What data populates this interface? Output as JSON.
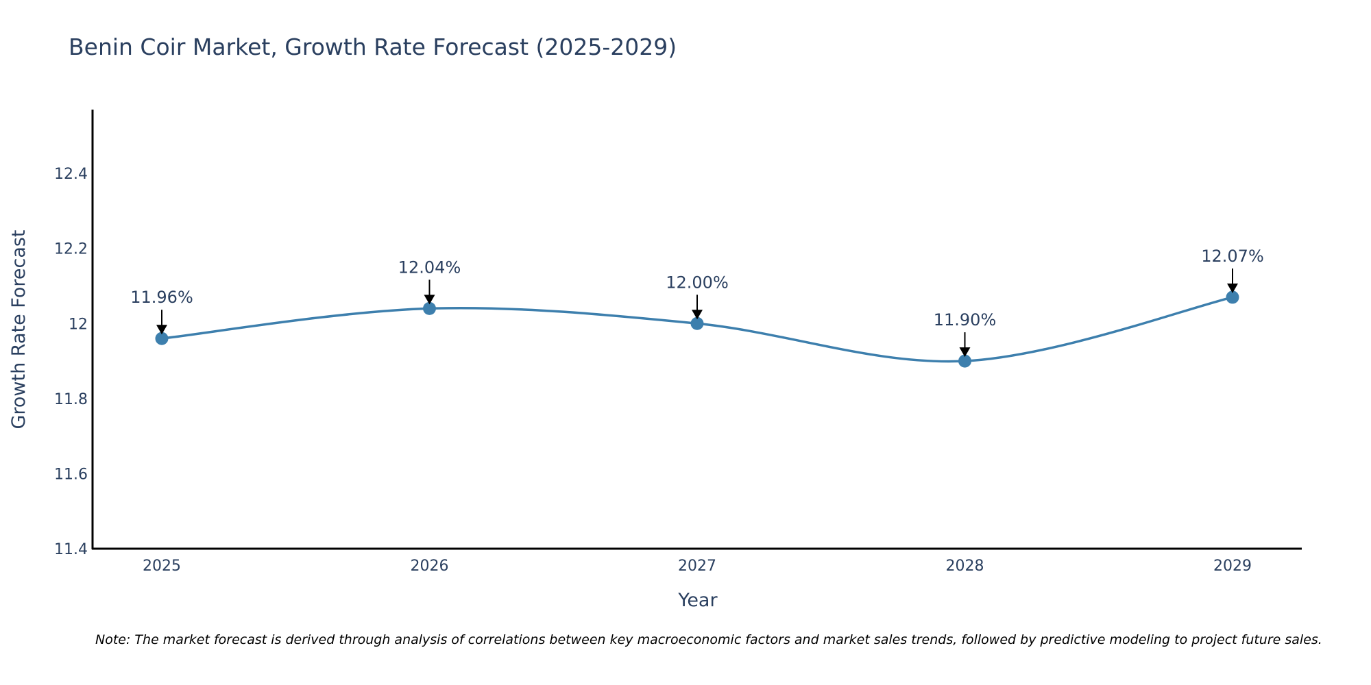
{
  "chart_data": {
    "type": "line",
    "title": "Benin Coir Market, Growth Rate Forecast (2025-2029)",
    "xlabel": "Year",
    "ylabel": "Growth Rate Forecast",
    "x": [
      "2025",
      "2026",
      "2027",
      "2028",
      "2029"
    ],
    "values": [
      11.96,
      12.04,
      12.0,
      11.9,
      12.07
    ],
    "data_labels": [
      "11.96%",
      "12.04%",
      "12.00%",
      "11.90%",
      "12.07%"
    ],
    "ylim": [
      11.4,
      12.57
    ],
    "y_ticks": [
      11.4,
      11.6,
      11.8,
      12,
      12.2,
      12.4
    ],
    "y_tick_labels": [
      "11.4",
      "11.6",
      "11.8",
      "12",
      "12.2",
      "12.4"
    ],
    "grid": false,
    "line_shape": "spline",
    "annotation_arrows": true,
    "series_color": "#3d7fad",
    "axis_color": "#000000",
    "text_color": "#2a3f5f",
    "note": "Note: The market forecast is derived through analysis of correlations between key macroeconomic factors and market sales trends, followed by predictive modeling to project future sales."
  }
}
